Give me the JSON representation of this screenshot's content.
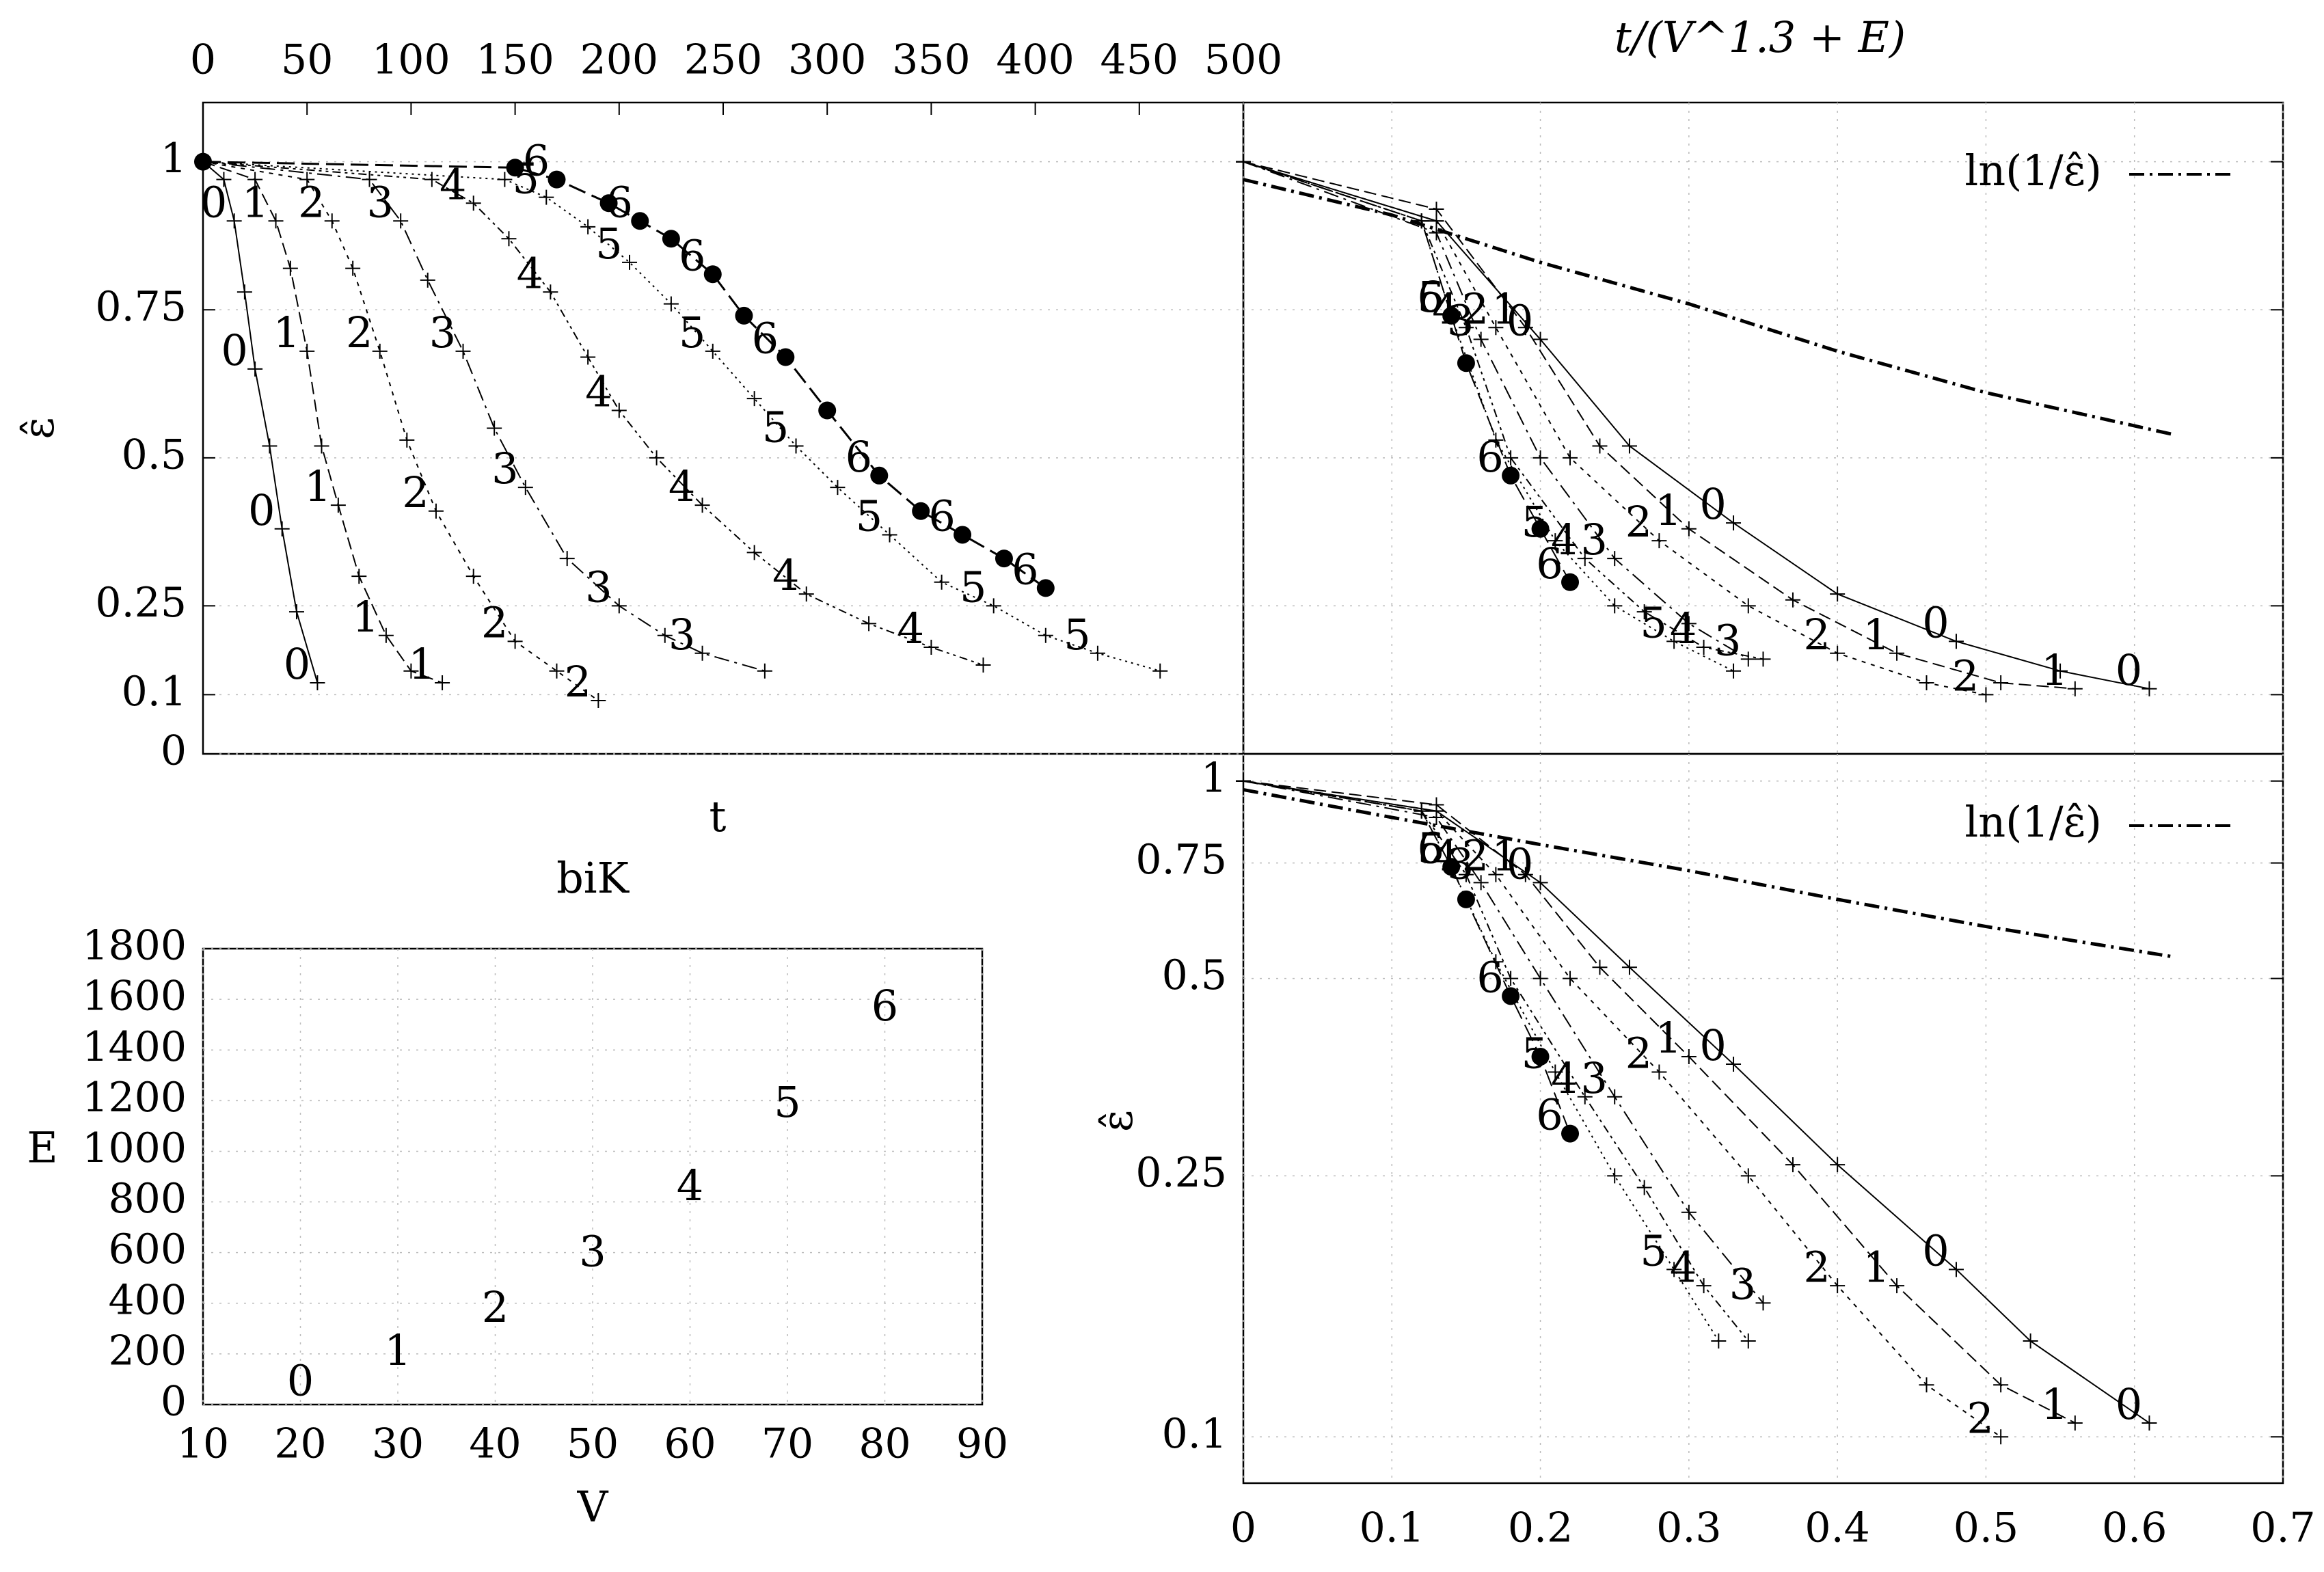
{
  "chart_data": [
    {
      "id": "top-left",
      "type": "line",
      "xlabel": "t",
      "ylabel": "ε̂",
      "xlim": [
        0,
        500
      ],
      "ylim": [
        0,
        1.1
      ],
      "xticks": [
        0,
        50,
        100,
        150,
        200,
        250,
        300,
        350,
        400,
        450,
        500
      ],
      "yticks": [
        0,
        0.1,
        0.25,
        0.5,
        0.75,
        1
      ],
      "ytick_labels": [
        "0",
        "0.1",
        "0.25",
        "0.5",
        "0.75",
        "1"
      ],
      "grid": true,
      "series": [
        {
          "name": "0",
          "x": [
            0,
            10,
            15,
            20,
            25,
            32,
            38,
            45,
            55
          ],
          "y": [
            1,
            0.97,
            0.9,
            0.78,
            0.65,
            0.52,
            0.38,
            0.24,
            0.12
          ]
        },
        {
          "name": "1",
          "x": [
            0,
            25,
            35,
            42,
            50,
            57,
            65,
            75,
            88,
            100,
            115
          ],
          "y": [
            1,
            0.97,
            0.9,
            0.82,
            0.68,
            0.52,
            0.42,
            0.3,
            0.2,
            0.14,
            0.12
          ]
        },
        {
          "name": "2",
          "x": [
            0,
            50,
            62,
            72,
            85,
            98,
            112,
            130,
            150,
            170,
            190
          ],
          "y": [
            1,
            0.97,
            0.9,
            0.82,
            0.68,
            0.53,
            0.41,
            0.3,
            0.19,
            0.14,
            0.09
          ]
        },
        {
          "name": "3",
          "x": [
            0,
            80,
            95,
            108,
            125,
            140,
            155,
            175,
            200,
            222,
            240,
            270
          ],
          "y": [
            1,
            0.97,
            0.9,
            0.8,
            0.68,
            0.55,
            0.45,
            0.33,
            0.25,
            0.2,
            0.17,
            0.14
          ]
        },
        {
          "name": "4",
          "x": [
            0,
            110,
            130,
            147,
            167,
            185,
            200,
            218,
            240,
            265,
            290,
            320,
            350,
            375
          ],
          "y": [
            1,
            0.97,
            0.93,
            0.87,
            0.78,
            0.67,
            0.58,
            0.5,
            0.42,
            0.34,
            0.27,
            0.22,
            0.18,
            0.15
          ]
        },
        {
          "name": "5",
          "x": [
            0,
            145,
            165,
            185,
            205,
            225,
            245,
            265,
            285,
            305,
            330,
            355,
            380,
            405,
            430,
            460
          ],
          "y": [
            1,
            0.97,
            0.94,
            0.89,
            0.83,
            0.76,
            0.68,
            0.6,
            0.52,
            0.45,
            0.37,
            0.29,
            0.25,
            0.2,
            0.17,
            0.14
          ]
        },
        {
          "name": "6",
          "x": [
            0,
            150,
            170,
            195,
            210,
            225,
            245,
            260,
            280,
            300,
            325,
            345,
            365,
            385,
            405
          ],
          "y": [
            1,
            0.99,
            0.97,
            0.93,
            0.9,
            0.87,
            0.81,
            0.74,
            0.67,
            0.58,
            0.47,
            0.41,
            0.37,
            0.33,
            0.28
          ]
        }
      ]
    },
    {
      "id": "top-right",
      "type": "line",
      "top_xlabel": "t/(V^1.3 + E)",
      "xlim": [
        0,
        0.7
      ],
      "ylim": [
        0,
        1.1
      ],
      "grid": true,
      "legend": {
        "label": "ln(1/ε̂)",
        "position": "top-right"
      },
      "reference_curve": {
        "name": "ln(1/ε̂)",
        "x": [
          0,
          0.1,
          0.2,
          0.3,
          0.4,
          0.5,
          0.625
        ],
        "y": [
          0.97,
          0.91,
          0.83,
          0.76,
          0.68,
          0.61,
          0.54
        ]
      },
      "series": [
        {
          "name": "0",
          "x": [
            0,
            0.13,
            0.2,
            0.26,
            0.33,
            0.4,
            0.48,
            0.55,
            0.61
          ],
          "y": [
            1,
            0.9,
            0.7,
            0.52,
            0.39,
            0.27,
            0.19,
            0.14,
            0.11
          ]
        },
        {
          "name": "1",
          "x": [
            0,
            0.13,
            0.19,
            0.24,
            0.3,
            0.37,
            0.44,
            0.51,
            0.56
          ],
          "y": [
            1,
            0.92,
            0.72,
            0.52,
            0.38,
            0.26,
            0.17,
            0.12,
            0.11
          ]
        },
        {
          "name": "2",
          "x": [
            0,
            0.13,
            0.17,
            0.22,
            0.28,
            0.34,
            0.4,
            0.46,
            0.5
          ],
          "y": [
            1,
            0.9,
            0.72,
            0.5,
            0.36,
            0.25,
            0.17,
            0.12,
            0.1
          ]
        },
        {
          "name": "3",
          "x": [
            0,
            0.13,
            0.16,
            0.2,
            0.25,
            0.3,
            0.34
          ],
          "y": [
            1,
            0.88,
            0.7,
            0.5,
            0.33,
            0.22,
            0.16
          ]
        },
        {
          "name": "4",
          "x": [
            0,
            0.12,
            0.15,
            0.18,
            0.23,
            0.27,
            0.31,
            0.35
          ],
          "y": [
            1,
            0.9,
            0.72,
            0.5,
            0.33,
            0.24,
            0.18,
            0.16
          ]
        },
        {
          "name": "5",
          "x": [
            0,
            0.12,
            0.14,
            0.17,
            0.21,
            0.25,
            0.29,
            0.33
          ],
          "y": [
            1,
            0.9,
            0.74,
            0.53,
            0.36,
            0.25,
            0.19,
            0.14
          ]
        },
        {
          "name": "6",
          "x": [
            0,
            0.12,
            0.14,
            0.15,
            0.18,
            0.2,
            0.22
          ],
          "y": [
            1,
            0.9,
            0.74,
            0.66,
            0.47,
            0.38,
            0.29
          ]
        }
      ]
    },
    {
      "id": "bottom-left",
      "type": "scatter",
      "title": "biK",
      "xlabel": "V",
      "ylabel": "E",
      "xlim": [
        10,
        90
      ],
      "ylim": [
        0,
        1800
      ],
      "xticks": [
        10,
        20,
        30,
        40,
        50,
        60,
        70,
        80,
        90
      ],
      "yticks": [
        0,
        200,
        400,
        600,
        800,
        1000,
        1200,
        1400,
        1600,
        1800
      ],
      "grid": true,
      "points": [
        {
          "label": "0",
          "x": 20,
          "y": 80
        },
        {
          "label": "1",
          "x": 30,
          "y": 200
        },
        {
          "label": "2",
          "x": 40,
          "y": 370
        },
        {
          "label": "3",
          "x": 50,
          "y": 590
        },
        {
          "label": "4",
          "x": 60,
          "y": 850
        },
        {
          "label": "5",
          "x": 70,
          "y": 1180
        },
        {
          "label": "6",
          "x": 80,
          "y": 1560
        }
      ]
    },
    {
      "id": "bottom-right",
      "type": "line",
      "ylabel": "ε̂",
      "yscale": "log",
      "xlim": [
        0,
        0.7
      ],
      "ylim": [
        0.085,
        1.1
      ],
      "xticks": [
        0,
        0.1,
        0.2,
        0.3,
        0.4,
        0.5,
        0.6,
        0.7
      ],
      "yticks": [
        0.1,
        0.25,
        0.5,
        0.75,
        1
      ],
      "ytick_labels": [
        "0.1",
        "0.25",
        "0.5",
        "0.75",
        "1"
      ],
      "grid": true,
      "legend": {
        "label": "ln(1/ε̂)",
        "position": "top-right"
      },
      "reference_curve": {
        "name": "ln(1/ε̂)",
        "x": [
          0,
          0.1,
          0.2,
          0.3,
          0.4,
          0.5,
          0.625
        ],
        "y": [
          0.97,
          0.88,
          0.8,
          0.73,
          0.66,
          0.6,
          0.54
        ]
      },
      "series": [
        {
          "name": "0",
          "x": [
            0,
            0.13,
            0.2,
            0.26,
            0.33,
            0.4,
            0.48,
            0.53,
            0.61
          ],
          "y": [
            1,
            0.9,
            0.7,
            0.52,
            0.37,
            0.26,
            0.18,
            0.14,
            0.105
          ]
        },
        {
          "name": "1",
          "x": [
            0,
            0.13,
            0.19,
            0.24,
            0.3,
            0.37,
            0.44,
            0.51,
            0.56
          ],
          "y": [
            1,
            0.92,
            0.72,
            0.52,
            0.38,
            0.26,
            0.17,
            0.12,
            0.105
          ]
        },
        {
          "name": "2",
          "x": [
            0,
            0.13,
            0.17,
            0.22,
            0.28,
            0.34,
            0.4,
            0.46,
            0.51
          ],
          "y": [
            1,
            0.9,
            0.72,
            0.5,
            0.36,
            0.25,
            0.17,
            0.12,
            0.1
          ]
        },
        {
          "name": "3",
          "x": [
            0,
            0.13,
            0.16,
            0.2,
            0.25,
            0.3,
            0.35
          ],
          "y": [
            1,
            0.88,
            0.7,
            0.5,
            0.33,
            0.22,
            0.16
          ]
        },
        {
          "name": "4",
          "x": [
            0,
            0.12,
            0.15,
            0.18,
            0.23,
            0.27,
            0.31,
            0.34
          ],
          "y": [
            1,
            0.9,
            0.72,
            0.5,
            0.33,
            0.24,
            0.17,
            0.14
          ]
        },
        {
          "name": "5",
          "x": [
            0,
            0.12,
            0.14,
            0.17,
            0.21,
            0.25,
            0.29,
            0.32
          ],
          "y": [
            1,
            0.9,
            0.74,
            0.53,
            0.36,
            0.25,
            0.18,
            0.14
          ]
        },
        {
          "name": "6",
          "x": [
            0,
            0.12,
            0.14,
            0.15,
            0.18,
            0.2,
            0.22
          ],
          "y": [
            1,
            0.9,
            0.74,
            0.66,
            0.47,
            0.38,
            0.29
          ]
        }
      ]
    }
  ]
}
